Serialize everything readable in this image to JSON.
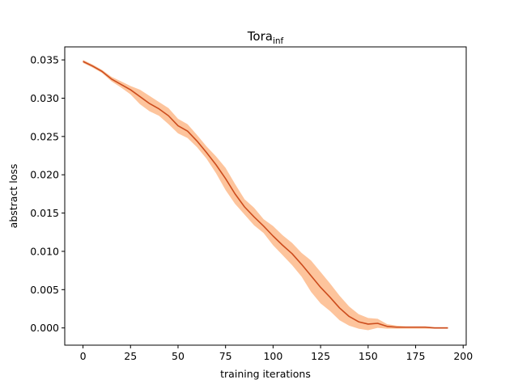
{
  "chart_data": {
    "type": "line",
    "title": "Tora",
    "title_subscript": "inf",
    "xlabel": "training iterations",
    "ylabel": "abstract loss",
    "xlim": [
      -9.6,
      201.6
    ],
    "ylim": [
      -0.00225,
      0.0367
    ],
    "x_ticks": [
      0,
      25,
      50,
      75,
      100,
      125,
      150,
      175,
      200
    ],
    "y_ticks": [
      0.0,
      0.005,
      0.01,
      0.015,
      0.02,
      0.025,
      0.03,
      0.035
    ],
    "y_tick_labels": [
      "0.000",
      "0.005",
      "0.010",
      "0.015",
      "0.020",
      "0.025",
      "0.030",
      "0.035"
    ],
    "grid": false,
    "legend": "none",
    "colors": {
      "line": "#cc4c1d",
      "band": "#fdc49c",
      "axes": "#000000"
    },
    "series": [
      {
        "x": [
          0,
          5,
          10,
          15,
          20,
          25,
          30,
          35,
          40,
          45,
          50,
          55,
          60,
          65,
          70,
          75,
          80,
          85,
          90,
          95,
          100,
          105,
          110,
          115,
          120,
          125,
          130,
          135,
          140,
          145,
          150,
          155,
          160,
          165,
          170,
          175,
          180,
          185,
          190,
          192
        ],
        "values": [
          0.0348,
          0.0342,
          0.0335,
          0.0325,
          0.0318,
          0.0311,
          0.0302,
          0.0293,
          0.0286,
          0.0277,
          0.0264,
          0.0257,
          0.0244,
          0.0229,
          0.0213,
          0.0195,
          0.0175,
          0.0158,
          0.0145,
          0.0133,
          0.012,
          0.0108,
          0.0097,
          0.0083,
          0.0068,
          0.0053,
          0.004,
          0.0026,
          0.0015,
          0.0008,
          0.0005,
          0.0006,
          0.0002,
          0.0001,
          0.0001,
          0.0001,
          0.0001,
          0.0,
          0.0,
          0.0
        ],
        "lower": [
          0.0346,
          0.034,
          0.0333,
          0.0322,
          0.0314,
          0.0305,
          0.0292,
          0.0283,
          0.0277,
          0.0266,
          0.0254,
          0.0248,
          0.0236,
          0.0221,
          0.0202,
          0.018,
          0.0162,
          0.0148,
          0.0134,
          0.0124,
          0.0108,
          0.0095,
          0.0082,
          0.0067,
          0.0047,
          0.0032,
          0.0022,
          0.001,
          0.0003,
          -0.0001,
          -0.0003,
          0.0,
          -0.0001,
          -0.0001,
          -0.0001,
          -0.0001,
          -0.0001,
          -0.0001,
          -0.0001,
          -0.0001
        ],
        "upper": [
          0.035,
          0.0344,
          0.0337,
          0.0328,
          0.0322,
          0.0316,
          0.0311,
          0.0303,
          0.0295,
          0.0287,
          0.0273,
          0.0266,
          0.0252,
          0.0237,
          0.0224,
          0.0209,
          0.0188,
          0.0168,
          0.0157,
          0.0142,
          0.0133,
          0.0121,
          0.0111,
          0.0098,
          0.0088,
          0.0073,
          0.0058,
          0.0042,
          0.0028,
          0.0018,
          0.0013,
          0.0012,
          0.0005,
          0.0003,
          0.0002,
          0.0002,
          0.0002,
          0.0001,
          0.0001,
          0.0001
        ]
      }
    ]
  }
}
